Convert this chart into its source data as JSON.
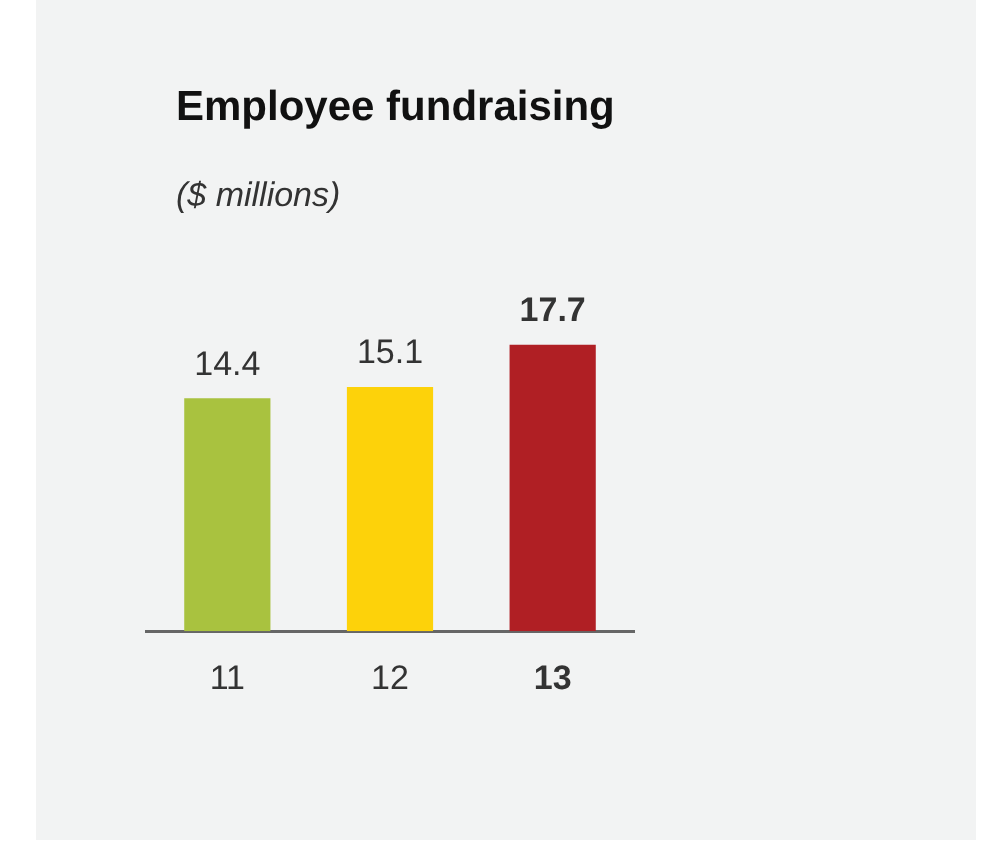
{
  "chart_data": {
    "type": "bar",
    "title": "Employee fundraising",
    "subtitle": "($ millions)",
    "categories": [
      "11",
      "12",
      "13"
    ],
    "values": [
      14.4,
      15.1,
      17.7
    ],
    "colors": [
      "#a9c23f",
      "#fdd20a",
      "#b01f24"
    ],
    "data_labels": true,
    "tick_labels": "x",
    "grid": false,
    "legend": false
  }
}
